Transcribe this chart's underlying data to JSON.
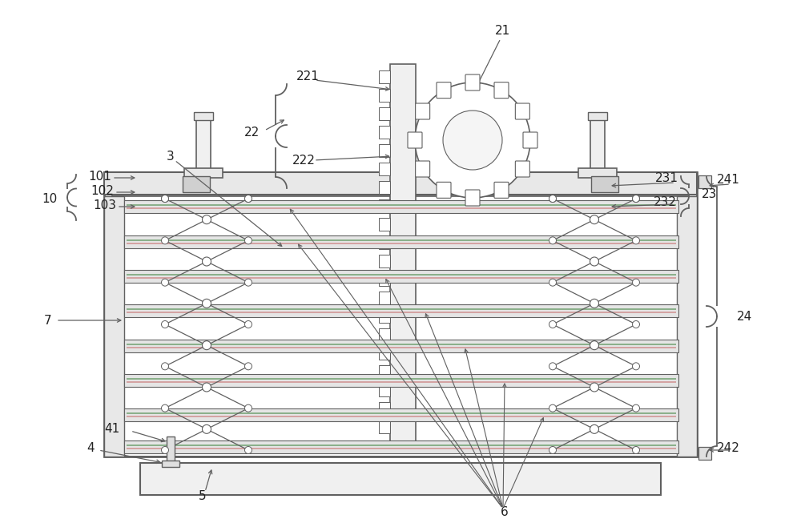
{
  "bg_color": "#ffffff",
  "lc": "#606060",
  "lc2": "#888888",
  "lw": 1.3,
  "fig_width": 10.0,
  "fig_height": 6.63
}
